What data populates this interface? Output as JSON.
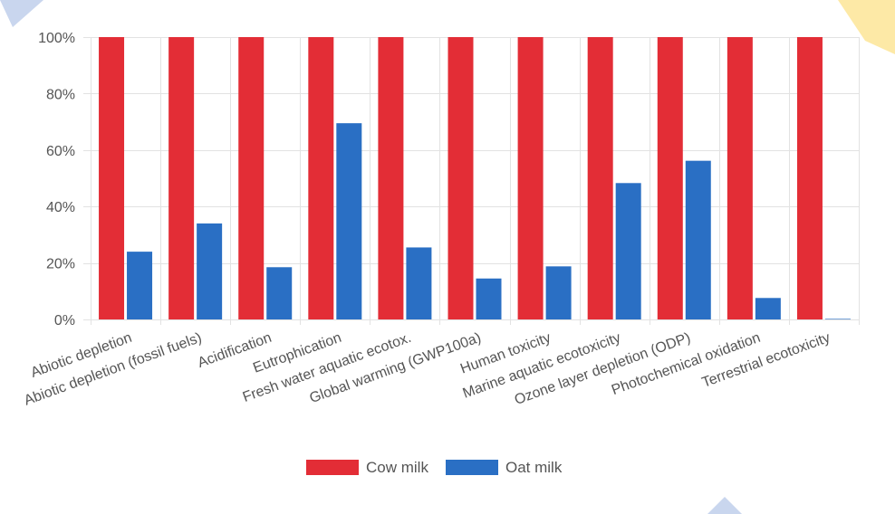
{
  "chart_data": {
    "type": "bar",
    "categories": [
      "Abiotic depletion",
      "Abiotic depletion (fossil fuels)",
      "Acidification",
      "Eutrophication",
      "Fresh water aquatic ecotox.",
      "Global warming (GWP100a)",
      "Human toxicity",
      "Marine aquatic ecotoxicity",
      "Ozone layer depletion (ODP)",
      "Photochemical oxidation",
      "Terrestrial ecotoxicity"
    ],
    "series": [
      {
        "name": "Cow milk",
        "color": "#e32d36",
        "values": [
          100,
          100,
          100,
          100,
          100,
          100,
          100,
          100,
          100,
          100,
          100
        ]
      },
      {
        "name": "Oat milk",
        "color": "#2a6fc4",
        "values": [
          24,
          34,
          18.5,
          69.5,
          25.5,
          14.5,
          18.8,
          48.3,
          56.2,
          7.6,
          0.2
        ]
      }
    ],
    "yticks": [
      "0%",
      "20%",
      "40%",
      "60%",
      "80%",
      "100%"
    ],
    "ylim": [
      0,
      100
    ],
    "grid": true,
    "legend_position": "bottom"
  },
  "decor": {
    "accent_blue": "#c9d6ee",
    "accent_yellow": "#fde9a6"
  }
}
